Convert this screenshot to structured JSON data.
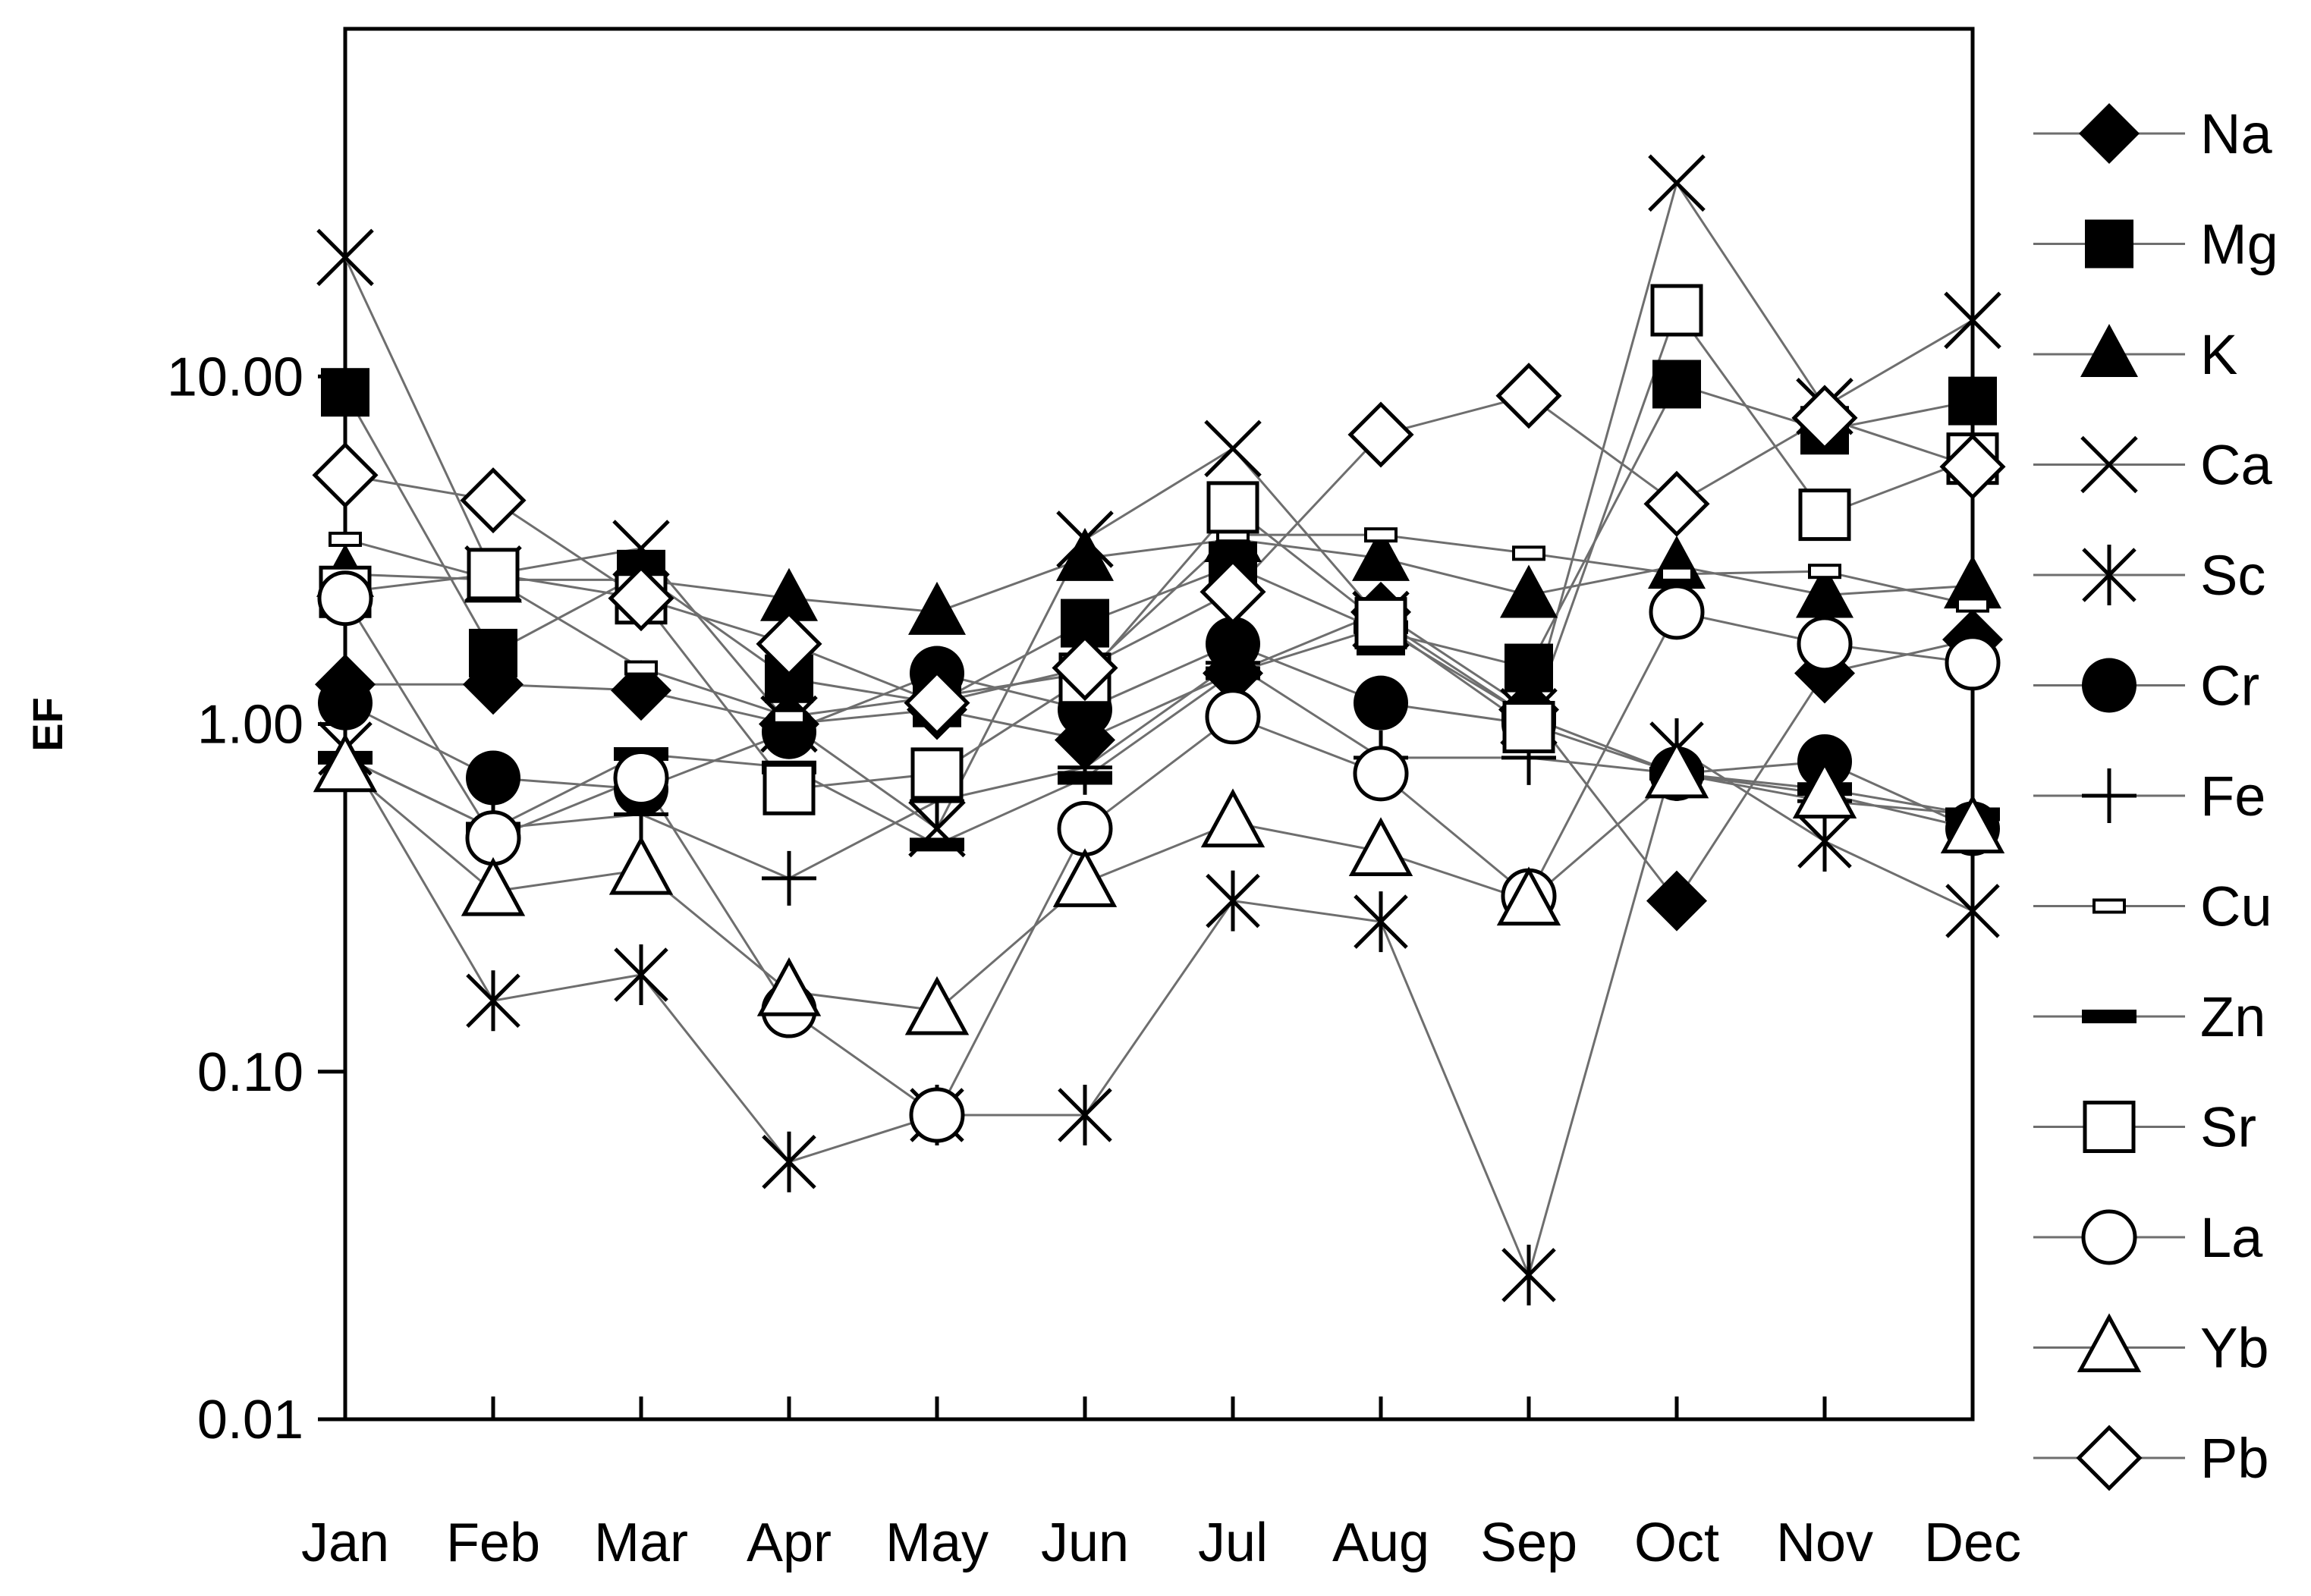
{
  "chart_data": {
    "type": "line",
    "title": "",
    "xlabel": "",
    "ylabel": "EF",
    "yscale": "log",
    "ylim": [
      0.01,
      100
    ],
    "yticks": [
      "0.01",
      "0.10",
      "1.00",
      "10.00"
    ],
    "categories": [
      "Jan",
      "Feb",
      "Mar",
      "Apr",
      "May",
      "Jun",
      "Jul",
      "Aug",
      "Sep",
      "Oct",
      "Nov",
      "Dec"
    ],
    "legend_position": "right",
    "grid": false,
    "series": [
      {
        "name": "Na",
        "marker": "diamond-filled",
        "values": [
          1.3,
          1.3,
          1.25,
          1.0,
          1.1,
          0.9,
          1.4,
          2.1,
          1.1,
          0.31,
          1.4,
          1.75
        ]
      },
      {
        "name": "Mg",
        "marker": "square-filled",
        "values": [
          9.0,
          1.6,
          2.7,
          1.35,
          1.15,
          1.95,
          2.85,
          1.85,
          1.45,
          9.5,
          7.0,
          8.5
        ]
      },
      {
        "name": "K",
        "marker": "triangle-filled",
        "values": [
          2.7,
          2.6,
          2.6,
          2.3,
          2.1,
          3.0,
          3.4,
          3.0,
          2.35,
          2.85,
          2.35,
          2.5
        ]
      },
      {
        "name": "Ca",
        "marker": "x",
        "values": [
          22.0,
          2.7,
          3.2,
          1.0,
          0.5,
          3.4,
          6.2,
          2.0,
          1.05,
          36.0,
          8.2,
          14.5
        ]
      },
      {
        "name": "Sc",
        "marker": "asterisk",
        "values": [
          0.85,
          0.16,
          0.19,
          0.055,
          0.075,
          0.075,
          0.31,
          0.27,
          0.026,
          0.85,
          0.46,
          0.29
        ]
      },
      {
        "name": "Cr",
        "marker": "circle-filled",
        "values": [
          1.15,
          0.7,
          0.65,
          0.95,
          1.4,
          1.1,
          1.7,
          1.15,
          1.0,
          0.72,
          0.78,
          0.5
        ]
      },
      {
        "name": "Fe",
        "marker": "plus",
        "values": [
          0.8,
          0.5,
          0.55,
          0.36,
          0.6,
          0.75,
          1.5,
          0.8,
          0.8,
          0.72,
          0.6,
          0.55
        ]
      },
      {
        "name": "Cu",
        "marker": "dash-small",
        "values": [
          3.4,
          2.6,
          1.45,
          1.05,
          1.2,
          1.4,
          3.5,
          3.5,
          3.1,
          2.7,
          2.75,
          2.2
        ]
      },
      {
        "name": "Zn",
        "marker": "dash",
        "values": [
          0.8,
          0.5,
          0.82,
          0.75,
          0.45,
          0.7,
          1.4,
          1.9,
          1.05,
          0.72,
          0.65,
          0.55
        ]
      },
      {
        "name": "Sr",
        "marker": "square-open",
        "values": [
          2.4,
          2.7,
          2.3,
          0.65,
          0.72,
          1.35,
          4.2,
          1.95,
          0.98,
          15.5,
          4.0,
          5.8
        ]
      },
      {
        "name": "La",
        "marker": "circle-open",
        "values": [
          2.3,
          0.47,
          0.7,
          0.15,
          0.075,
          0.5,
          1.05,
          0.72,
          0.32,
          2.1,
          1.7,
          1.5
        ]
      },
      {
        "name": "Yb",
        "marker": "triangle-open",
        "values": [
          0.75,
          0.33,
          0.38,
          0.17,
          0.15,
          0.35,
          0.52,
          0.43,
          0.31,
          0.72,
          0.63,
          0.5
        ]
      },
      {
        "name": "Pb",
        "marker": "diamond-open",
        "values": [
          5.2,
          4.4,
          2.3,
          1.7,
          1.15,
          1.45,
          2.4,
          6.8,
          8.8,
          4.3,
          7.6,
          5.5
        ]
      }
    ]
  }
}
